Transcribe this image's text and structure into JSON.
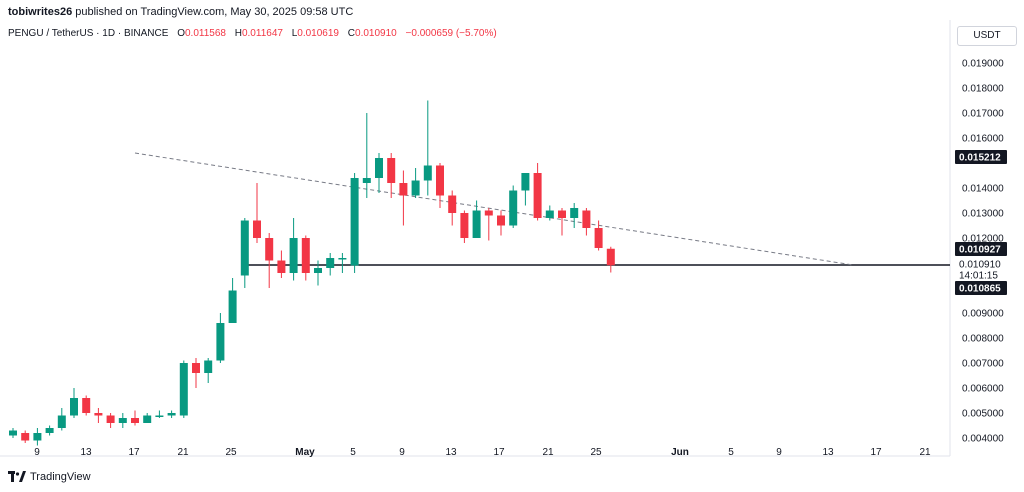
{
  "header": {
    "author": "tobiwrites26",
    "published_text": "published on TradingView.com, May 30, 2025 09:58 UTC"
  },
  "symbol_line": {
    "symbol": "PENGU / TetherUS · 1D · BINANCE",
    "open_label": "O",
    "open": "0.011568",
    "high_label": "H",
    "high": "0.011647",
    "low_label": "L",
    "low": "0.010619",
    "close_label": "C",
    "close": "0.010910",
    "change": "−0.000659 (−5.70%)"
  },
  "currency": "USDT",
  "footer": {
    "brand": "TradingView"
  },
  "colors": {
    "up": "#089981",
    "down": "#f23645",
    "text": "#131722",
    "axis": "#e0e3eb"
  },
  "chart_data": {
    "type": "candlestick",
    "ylim": [
      0.0036,
      0.0196
    ],
    "y_ticks": [
      "0.019000",
      "0.018000",
      "0.017000",
      "0.016000",
      "0.014000",
      "0.013000",
      "0.012000",
      "0.009000",
      "0.008000",
      "0.007000",
      "0.006000",
      "0.005000",
      "0.004000"
    ],
    "x_ticks": [
      "9",
      "13",
      "17",
      "21",
      "25",
      "May",
      "5",
      "9",
      "13",
      "17",
      "21",
      "25",
      "Jun",
      "5",
      "9",
      "13",
      "17",
      "21"
    ],
    "price_labels": [
      {
        "text": "0.015212",
        "value": 0.015212
      },
      {
        "text": "0.010927",
        "value": 0.010927
      },
      {
        "text": "0.010910",
        "value": 0.01091
      },
      {
        "text": "14:01:15",
        "value": 0.01091
      },
      {
        "text": "0.010865",
        "value": 0.010865
      }
    ],
    "support_level": 0.01092,
    "trendline": {
      "from": [
        10,
        0.0154
      ],
      "to": [
        46,
        0.01092
      ]
    },
    "candles": [
      [
        0,
        0.0041,
        0.0043,
        0.004,
        0.0044
      ],
      [
        1,
        0.0042,
        0.0039,
        0.0038,
        0.0043
      ],
      [
        2,
        0.0039,
        0.0042,
        0.0037,
        0.0044
      ],
      [
        3,
        0.0042,
        0.0044,
        0.0041,
        0.0045
      ],
      [
        4,
        0.0044,
        0.0049,
        0.0043,
        0.0052
      ],
      [
        5,
        0.0049,
        0.0056,
        0.0048,
        0.006
      ],
      [
        6,
        0.0056,
        0.005,
        0.0049,
        0.0057
      ],
      [
        7,
        0.005,
        0.0049,
        0.0046,
        0.0052
      ],
      [
        8,
        0.0049,
        0.0046,
        0.0044,
        0.005
      ],
      [
        9,
        0.0046,
        0.0048,
        0.0044,
        0.005
      ],
      [
        10,
        0.0048,
        0.0046,
        0.0045,
        0.0051
      ],
      [
        11,
        0.0046,
        0.0049,
        0.0046,
        0.005
      ],
      [
        12,
        0.0049,
        0.0049,
        0.0048,
        0.0051
      ],
      [
        13,
        0.0049,
        0.005,
        0.0048,
        0.0051
      ],
      [
        14,
        0.0049,
        0.007,
        0.0048,
        0.0071
      ],
      [
        15,
        0.007,
        0.0066,
        0.006,
        0.0072
      ],
      [
        16,
        0.0066,
        0.0071,
        0.0062,
        0.0072
      ],
      [
        17,
        0.0071,
        0.0086,
        0.007,
        0.009
      ],
      [
        18,
        0.0086,
        0.0099,
        0.0086,
        0.0104
      ],
      [
        19,
        0.0105,
        0.0127,
        0.01,
        0.0128
      ],
      [
        20,
        0.0127,
        0.012,
        0.0118,
        0.0142
      ],
      [
        21,
        0.012,
        0.0111,
        0.01,
        0.0122
      ],
      [
        22,
        0.0111,
        0.0106,
        0.0104,
        0.0115
      ],
      [
        23,
        0.0106,
        0.012,
        0.0103,
        0.0128
      ],
      [
        24,
        0.012,
        0.0106,
        0.0103,
        0.0121
      ],
      [
        25,
        0.0106,
        0.0108,
        0.0101,
        0.0111
      ],
      [
        26,
        0.0108,
        0.0112,
        0.0105,
        0.0114
      ],
      [
        27,
        0.0112,
        0.0112,
        0.0106,
        0.0114
      ],
      [
        28,
        0.0109,
        0.0144,
        0.0106,
        0.0146
      ],
      [
        29,
        0.0142,
        0.0144,
        0.0136,
        0.017
      ],
      [
        30,
        0.0144,
        0.0152,
        0.0138,
        0.0154
      ],
      [
        31,
        0.0152,
        0.0142,
        0.0136,
        0.0154
      ],
      [
        32,
        0.0142,
        0.0137,
        0.0125,
        0.0147
      ],
      [
        33,
        0.0137,
        0.0143,
        0.0136,
        0.0148
      ],
      [
        34,
        0.0143,
        0.0149,
        0.0137,
        0.0175
      ],
      [
        35,
        0.0149,
        0.0137,
        0.0132,
        0.015
      ],
      [
        36,
        0.0137,
        0.013,
        0.0125,
        0.0139
      ],
      [
        37,
        0.013,
        0.012,
        0.0118,
        0.0131
      ],
      [
        38,
        0.012,
        0.0131,
        0.012,
        0.0135
      ],
      [
        39,
        0.0131,
        0.0129,
        0.0119,
        0.0132
      ],
      [
        40,
        0.0129,
        0.0125,
        0.0121,
        0.0131
      ],
      [
        41,
        0.0125,
        0.0139,
        0.0124,
        0.0141
      ],
      [
        42,
        0.0139,
        0.0146,
        0.0133,
        0.0146
      ],
      [
        43,
        0.0146,
        0.0128,
        0.0127,
        0.015
      ],
      [
        44,
        0.0128,
        0.0131,
        0.0127,
        0.0133
      ],
      [
        45,
        0.0131,
        0.0128,
        0.0121,
        0.0132
      ],
      [
        46,
        0.0128,
        0.0132,
        0.0124,
        0.0134
      ],
      [
        47,
        0.0131,
        0.0124,
        0.0121,
        0.0132
      ],
      [
        48,
        0.0124,
        0.0116,
        0.0115,
        0.0127
      ],
      [
        49,
        0.01157,
        0.01091,
        0.01062,
        0.01165
      ]
    ]
  }
}
